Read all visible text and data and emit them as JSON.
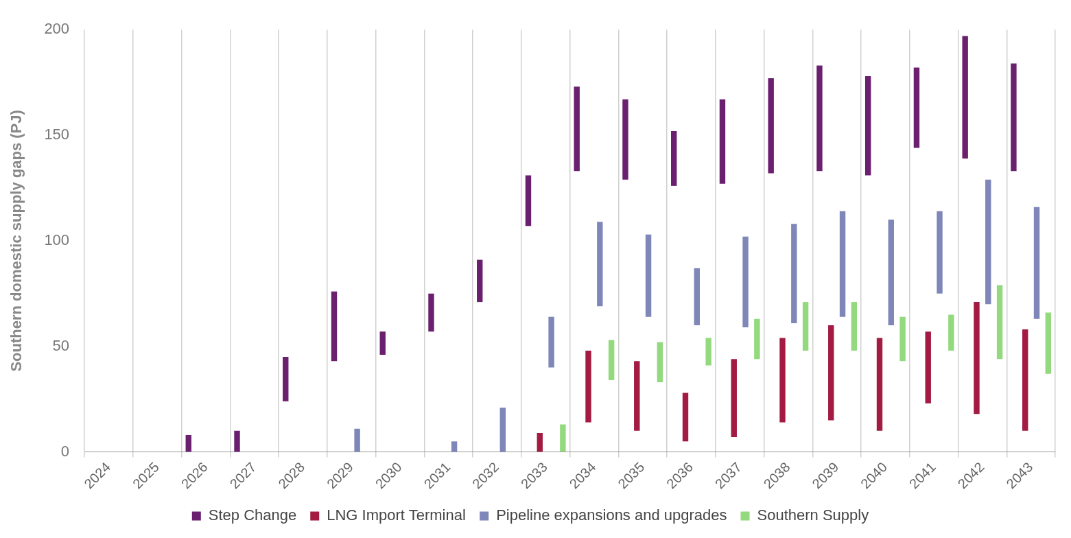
{
  "chart_data": {
    "type": "bar",
    "ylabel": "Southern domestic supply gaps (PJ)",
    "categories": [
      "2024",
      "2025",
      "2026",
      "2027",
      "2028",
      "2029",
      "2030",
      "2031",
      "2032",
      "2033",
      "2034",
      "2035",
      "2036",
      "2037",
      "2038",
      "2039",
      "2040",
      "2041",
      "2042",
      "2043"
    ],
    "series": [
      {
        "name": "Step Change",
        "color": "#6b1f6f",
        "base": [
          null,
          null,
          0,
          0,
          24,
          43,
          46,
          57,
          71,
          107,
          133,
          129,
          126,
          127,
          132,
          133,
          131,
          144,
          139,
          133
        ],
        "values": [
          null,
          null,
          8,
          10,
          21,
          33,
          11,
          18,
          20,
          24,
          40,
          38,
          26,
          40,
          45,
          50,
          47,
          38,
          58,
          51
        ]
      },
      {
        "name": "LNG Import Terminal",
        "color": "#a31a42",
        "base": [
          null,
          null,
          null,
          null,
          null,
          null,
          null,
          null,
          null,
          0,
          14,
          10,
          5,
          7,
          14,
          15,
          10,
          23,
          18,
          10
        ],
        "values": [
          null,
          null,
          null,
          null,
          null,
          null,
          null,
          null,
          null,
          9,
          34,
          33,
          23,
          37,
          40,
          45,
          44,
          34,
          53,
          48
        ]
      },
      {
        "name": "Pipeline expansions and upgrades",
        "color": "#7f86b8",
        "base": [
          null,
          null,
          null,
          null,
          null,
          0,
          null,
          0,
          0,
          40,
          69,
          64,
          60,
          59,
          61,
          64,
          60,
          75,
          70,
          63
        ],
        "values": [
          null,
          null,
          null,
          null,
          null,
          11,
          null,
          5,
          21,
          24,
          40,
          39,
          27,
          43,
          47,
          50,
          50,
          39,
          59,
          53
        ]
      },
      {
        "name": "Southern Supply",
        "color": "#93d97d",
        "base": [
          null,
          null,
          null,
          null,
          null,
          null,
          null,
          null,
          null,
          0,
          34,
          33,
          41,
          44,
          48,
          48,
          43,
          48,
          44,
          37
        ],
        "values": [
          null,
          null,
          null,
          null,
          null,
          null,
          null,
          null,
          null,
          13,
          19,
          19,
          13,
          19,
          23,
          23,
          21,
          17,
          35,
          29
        ]
      }
    ],
    "ylim": [
      0,
      200
    ],
    "yticks": [
      0,
      50,
      100,
      150,
      200
    ],
    "grid": "x",
    "legend": "bottom"
  }
}
